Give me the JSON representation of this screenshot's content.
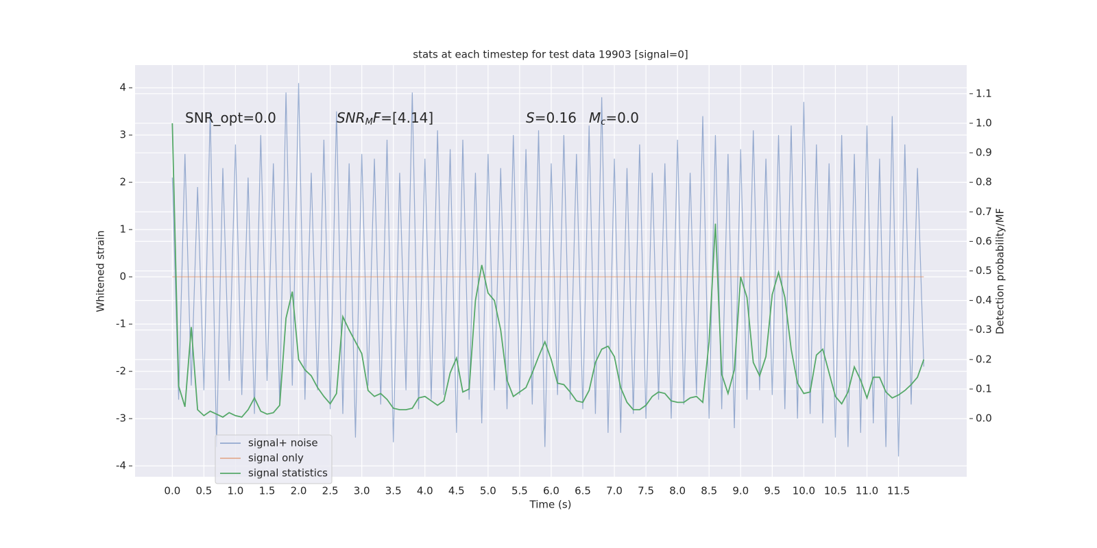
{
  "chart_data": {
    "type": "line",
    "title": "stats at each timestep for test data 19903 [signal=0]",
    "xlabel": "Time (s)",
    "ylabel": "Whitened strain",
    "y2label": "Detection probability/MF",
    "grid": true,
    "legend": "lower left",
    "annotations": [
      [
        {
          "text": "SNR_opt=0.0"
        }
      ],
      [
        {
          "text": "SNR",
          "style": "italic"
        },
        {
          "text": "M",
          "style": "italic-sub"
        },
        {
          "text": "F",
          "style": "italic"
        },
        {
          "text": "=[4.14]"
        }
      ],
      [
        {
          "text": "S",
          "style": "italic"
        },
        {
          "text": "=0.16"
        }
      ],
      [
        {
          "text": "M",
          "style": "italic"
        },
        {
          "text": "c",
          "style": "italic-sub"
        },
        {
          "text": "=0.0"
        }
      ]
    ],
    "xlim": [
      -0.59,
      12.58
    ],
    "ylim": [
      -4.23,
      4.48
    ],
    "y2lim": [
      -0.197,
      1.197
    ],
    "xticks": [
      {
        "value": 0,
        "label": "0.0"
      },
      0.5,
      {
        "value": 1,
        "label": "1.0"
      },
      1.5,
      {
        "value": 2,
        "label": "2.0"
      },
      2.5,
      {
        "value": 3,
        "label": "3.0"
      },
      3.5,
      {
        "value": 4,
        "label": "4.0"
      },
      4.5,
      {
        "value": 5,
        "label": "5.0"
      },
      5.5,
      {
        "value": 6,
        "label": "6.0"
      },
      6.5,
      {
        "value": 7,
        "label": "7.0"
      },
      7.5,
      {
        "value": 8,
        "label": "8.0"
      },
      8.5,
      {
        "value": 9,
        "label": "9.0"
      },
      9.5,
      {
        "value": 10,
        "label": "10.0"
      },
      10.5,
      {
        "value": 11,
        "label": "11.0"
      },
      11.5
    ],
    "yticks": [
      -4,
      -3,
      -2,
      -1,
      0,
      1,
      2,
      3,
      4
    ],
    "y2ticks": [
      {
        "value": 0,
        "label": "0.0"
      },
      0.1,
      0.2,
      0.3,
      0.4,
      0.5,
      0.6,
      0.7,
      0.8,
      0.9,
      {
        "value": 1,
        "label": "1.0"
      },
      1.1
    ],
    "x": [
      0.0,
      0.1,
      0.2,
      0.3,
      0.4,
      0.5,
      0.6,
      0.7,
      0.8,
      0.9,
      1.0,
      1.1,
      1.2,
      1.3,
      1.4,
      1.5,
      1.6,
      1.7,
      1.8,
      1.9,
      2.0,
      2.1,
      2.2,
      2.3,
      2.4,
      2.5,
      2.6,
      2.7,
      2.8,
      2.9,
      3.0,
      3.1,
      3.2,
      3.3,
      3.4,
      3.5,
      3.6,
      3.7,
      3.8,
      3.9,
      4.0,
      4.1,
      4.2,
      4.3,
      4.4,
      4.5,
      4.6,
      4.7,
      4.8,
      4.9,
      5.0,
      5.1,
      5.2,
      5.3,
      5.4,
      5.5,
      5.6,
      5.7,
      5.8,
      5.9,
      6.0,
      6.1,
      6.2,
      6.3,
      6.4,
      6.5,
      6.6,
      6.7,
      6.8,
      6.9,
      7.0,
      7.1,
      7.2,
      7.3,
      7.4,
      7.5,
      7.6,
      7.7,
      7.8,
      7.9,
      8.0,
      8.1,
      8.2,
      8.3,
      8.4,
      8.5,
      8.6,
      8.7,
      8.8,
      8.9,
      9.0,
      9.1,
      9.2,
      9.3,
      9.4,
      9.5,
      9.6,
      9.7,
      9.8,
      9.9,
      10.0,
      10.1,
      10.2,
      10.3,
      10.4,
      10.5,
      10.6,
      10.7,
      10.8,
      10.9,
      11.0,
      11.1,
      11.2,
      11.3,
      11.4,
      11.5,
      11.6,
      11.7,
      11.8,
      11.9
    ],
    "series": [
      {
        "name": "signal+ noise",
        "color": "#4c72b0",
        "axis": "y",
        "values": [
          2.1,
          -2.6,
          2.6,
          -2.3,
          1.9,
          -2.4,
          3.5,
          -3.6,
          2.3,
          -2.2,
          2.8,
          -2.5,
          2.1,
          -2.9,
          3.0,
          -2.2,
          2.4,
          -2.7,
          3.9,
          -2.3,
          4.1,
          -2.6,
          2.2,
          -2.4,
          2.9,
          -2.8,
          3.5,
          -2.9,
          2.4,
          -3.4,
          2.6,
          -2.3,
          2.5,
          -2.7,
          2.9,
          -3.5,
          2.2,
          -2.4,
          3.9,
          -2.8,
          2.5,
          -2.6,
          3.1,
          -2.5,
          2.7,
          -3.3,
          2.9,
          -2.6,
          2.2,
          -3.1,
          2.6,
          -2.4,
          2.3,
          -2.8,
          3.0,
          -2.5,
          2.7,
          -2.7,
          3.1,
          -3.6,
          2.4,
          -2.5,
          3.0,
          -2.6,
          2.6,
          -2.8,
          3.2,
          -2.9,
          3.8,
          -3.3,
          2.5,
          -3.3,
          2.3,
          -2.9,
          2.8,
          -3.0,
          2.2,
          -2.6,
          2.4,
          -3.0,
          2.9,
          -2.7,
          2.2,
          -2.5,
          3.4,
          -3.0,
          3.0,
          -2.8,
          2.6,
          -3.2,
          2.7,
          -2.6,
          3.1,
          -2.4,
          2.5,
          -2.5,
          3.0,
          -2.8,
          3.2,
          -3.0,
          3.7,
          -2.9,
          2.8,
          -3.1,
          2.4,
          -3.4,
          3.0,
          -3.6,
          2.6,
          -3.3,
          3.2,
          -3.1,
          2.5,
          -3.6,
          3.4,
          -3.8,
          2.8,
          -2.7,
          2.3,
          -1.9
        ]
      },
      {
        "name": "signal only",
        "color": "#dd8452",
        "axis": "y",
        "values": [
          0,
          0,
          0,
          0,
          0,
          0,
          0,
          0,
          0,
          0,
          0,
          0,
          0,
          0,
          0,
          0,
          0,
          0,
          0,
          0,
          0,
          0,
          0,
          0,
          0,
          0,
          0,
          0,
          0,
          0,
          0,
          0,
          0,
          0,
          0,
          0,
          0,
          0,
          0,
          0,
          0,
          0,
          0,
          0,
          0,
          0,
          0,
          0,
          0,
          0,
          0,
          0,
          0,
          0,
          0,
          0,
          0,
          0,
          0,
          0,
          0,
          0,
          0,
          0,
          0,
          0,
          0,
          0,
          0,
          0,
          0,
          0,
          0,
          0,
          0,
          0,
          0,
          0,
          0,
          0,
          0,
          0,
          0,
          0,
          0,
          0,
          0,
          0,
          0,
          0,
          0,
          0,
          0,
          0,
          0,
          0,
          0,
          0,
          0,
          0,
          0,
          0,
          0,
          0,
          0,
          0,
          0,
          0,
          0,
          0,
          0,
          0,
          0,
          0,
          0,
          0,
          0,
          0,
          0,
          0
        ]
      },
      {
        "name": "signal statistics",
        "color": "#55a868",
        "axis": "y2",
        "values": [
          1.0,
          0.11,
          0.04,
          0.31,
          0.03,
          0.01,
          0.025,
          0.015,
          0.005,
          0.02,
          0.01,
          0.005,
          0.03,
          0.07,
          0.025,
          0.015,
          0.02,
          0.045,
          0.34,
          0.43,
          0.2,
          0.165,
          0.145,
          0.105,
          0.075,
          0.05,
          0.085,
          0.345,
          0.3,
          0.26,
          0.22,
          0.095,
          0.075,
          0.085,
          0.065,
          0.035,
          0.03,
          0.03,
          0.035,
          0.07,
          0.075,
          0.06,
          0.045,
          0.06,
          0.155,
          0.205,
          0.09,
          0.1,
          0.4,
          0.52,
          0.425,
          0.4,
          0.3,
          0.13,
          0.075,
          0.09,
          0.105,
          0.155,
          0.21,
          0.26,
          0.2,
          0.12,
          0.115,
          0.09,
          0.06,
          0.055,
          0.095,
          0.19,
          0.235,
          0.245,
          0.21,
          0.105,
          0.055,
          0.03,
          0.03,
          0.045,
          0.075,
          0.09,
          0.085,
          0.06,
          0.055,
          0.055,
          0.07,
          0.075,
          0.055,
          0.26,
          0.66,
          0.15,
          0.085,
          0.165,
          0.48,
          0.41,
          0.19,
          0.145,
          0.21,
          0.42,
          0.495,
          0.41,
          0.235,
          0.12,
          0.085,
          0.09,
          0.215,
          0.235,
          0.155,
          0.075,
          0.05,
          0.09,
          0.175,
          0.13,
          0.07,
          0.14,
          0.14,
          0.09,
          0.07,
          0.08,
          0.095,
          0.115,
          0.14,
          0.2
        ]
      }
    ]
  }
}
